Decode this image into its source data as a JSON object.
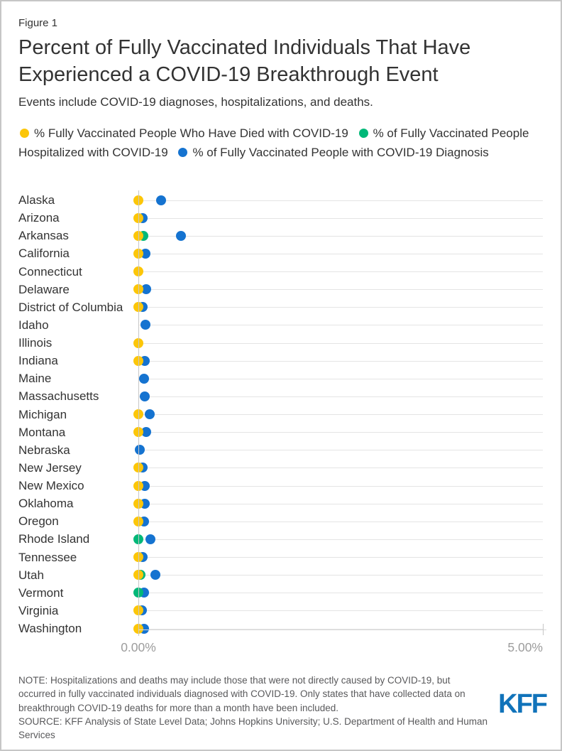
{
  "figure_label": "Figure 1",
  "title": "Percent of Fully Vaccinated Individuals That Have Experienced a COVID-19 Breakthrough Event",
  "subtitle": "Events include COVID-19 diagnoses, hospitalizations, and deaths.",
  "legend": [
    {
      "key": "died",
      "label": "% Fully Vaccinated People Who Have Died with COVID-19"
    },
    {
      "key": "hospitalized",
      "label": "% of Fully Vaccinated People Hospitalized with COVID-19"
    },
    {
      "key": "diagnosis",
      "label": "% of Fully Vaccinated People with COVID-19 Diagnosis"
    }
  ],
  "colors": {
    "died": "#fcc608",
    "hospitalized": "#00b878",
    "diagnosis": "#1573d0",
    "kff_logo_blue": "#1173ba",
    "grid": "#e4e4e4",
    "axis_line": "#c6c6c6",
    "bottom_axis": "#d9d9d9",
    "text": "#333333",
    "tick_text": "#9c9c9c",
    "note_text": "#59595b"
  },
  "chart_data": {
    "type": "scatter",
    "subtype": "horizontal-dot-plot",
    "x_unit": "percent of fully vaccinated people",
    "xlim": [
      0,
      5
    ],
    "x_ticks": [
      {
        "label": "0.00%",
        "value": 0
      },
      {
        "label": "5.00%",
        "value": 5
      }
    ],
    "grid": "horizontal row gridlines",
    "legend_position": "top",
    "draw_order_back_to_front": [
      "diagnosis",
      "hospitalized",
      "died"
    ],
    "rows": [
      {
        "state": "Alaska",
        "died": 0.0,
        "hospitalized": null,
        "diagnosis": 0.28
      },
      {
        "state": "Arizona",
        "died": 0.0,
        "hospitalized": null,
        "diagnosis": 0.05
      },
      {
        "state": "Arkansas",
        "died": 0.0,
        "hospitalized": 0.06,
        "diagnosis": 0.53
      },
      {
        "state": "California",
        "died": 0.0,
        "hospitalized": null,
        "diagnosis": 0.09
      },
      {
        "state": "Connecticut",
        "died": 0.0,
        "hospitalized": null,
        "diagnosis": null
      },
      {
        "state": "Delaware",
        "died": 0.0,
        "hospitalized": null,
        "diagnosis": 0.1
      },
      {
        "state": "District of Columbia",
        "died": 0.0,
        "hospitalized": null,
        "diagnosis": 0.05
      },
      {
        "state": "Idaho",
        "died": null,
        "hospitalized": null,
        "diagnosis": 0.09
      },
      {
        "state": "Illinois",
        "died": 0.0,
        "hospitalized": null,
        "diagnosis": null
      },
      {
        "state": "Indiana",
        "died": 0.0,
        "hospitalized": null,
        "diagnosis": 0.08
      },
      {
        "state": "Maine",
        "died": null,
        "hospitalized": null,
        "diagnosis": 0.07
      },
      {
        "state": "Massachusetts",
        "died": null,
        "hospitalized": null,
        "diagnosis": 0.08
      },
      {
        "state": "Michigan",
        "died": 0.0,
        "hospitalized": null,
        "diagnosis": 0.14
      },
      {
        "state": "Montana",
        "died": 0.0,
        "hospitalized": null,
        "diagnosis": 0.1
      },
      {
        "state": "Nebraska",
        "died": null,
        "hospitalized": null,
        "diagnosis": 0.02
      },
      {
        "state": "New Jersey",
        "died": 0.0,
        "hospitalized": null,
        "diagnosis": 0.05
      },
      {
        "state": "New Mexico",
        "died": 0.0,
        "hospitalized": null,
        "diagnosis": 0.08
      },
      {
        "state": "Oklahoma",
        "died": 0.0,
        "hospitalized": null,
        "diagnosis": 0.08
      },
      {
        "state": "Oregon",
        "died": 0.0,
        "hospitalized": null,
        "diagnosis": 0.07
      },
      {
        "state": "Rhode Island",
        "died": null,
        "hospitalized": 0.0,
        "diagnosis": 0.15
      },
      {
        "state": "Tennessee",
        "died": 0.0,
        "hospitalized": null,
        "diagnosis": 0.05
      },
      {
        "state": "Utah",
        "died": 0.0,
        "hospitalized": 0.03,
        "diagnosis": 0.21
      },
      {
        "state": "Vermont",
        "died": null,
        "hospitalized": 0.0,
        "diagnosis": 0.07
      },
      {
        "state": "Virginia",
        "died": 0.0,
        "hospitalized": null,
        "diagnosis": 0.04
      },
      {
        "state": "Washington",
        "died": 0.0,
        "hospitalized": null,
        "diagnosis": 0.07
      }
    ]
  },
  "note": "NOTE: Hospitalizations and deaths may include those that were not directly caused by COVID-19, but occurred in fully vaccinated individuals diagnosed with COVID-19. Only states that have collected data on breakthrough COVID-19 deaths for more than a month have been included.",
  "source": "SOURCE: KFF Analysis of State Level Data; Johns Hopkins University; U.S. Department of Health and Human Services",
  "logo_text": "KFF"
}
